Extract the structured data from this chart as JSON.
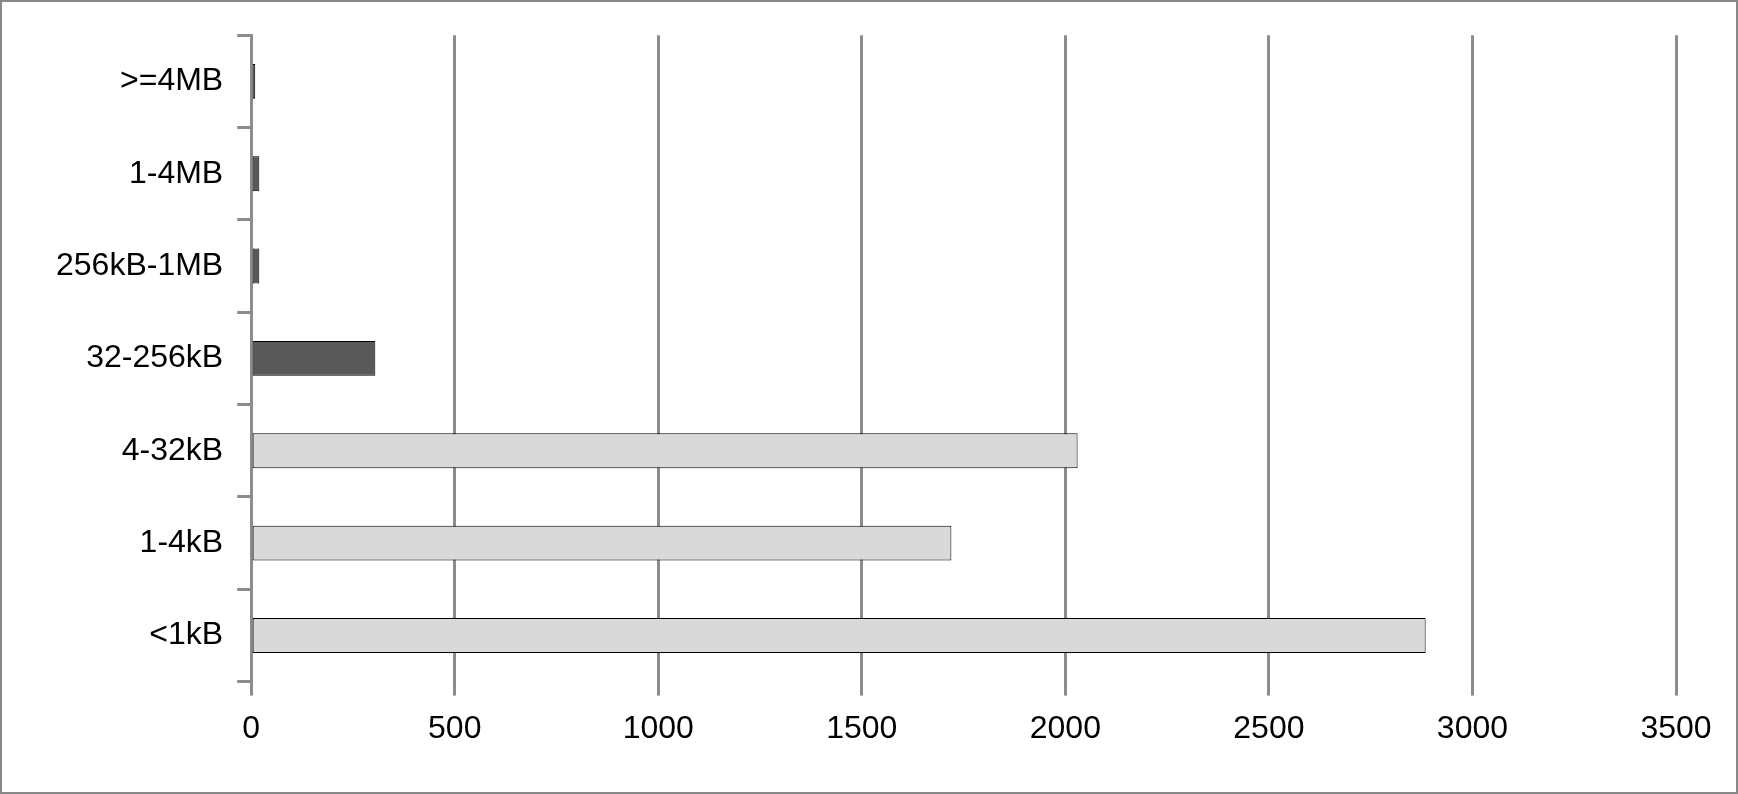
{
  "chart_data": {
    "type": "bar",
    "orientation": "horizontal",
    "categories": [
      ">=4MB",
      "1-4MB",
      "256kB-1MB",
      "32-256kB",
      "4-32kB",
      "1-4kB",
      "<1kB"
    ],
    "values": [
      10,
      20,
      20,
      305,
      2030,
      1720,
      2885
    ],
    "colors": [
      "#595959",
      "#595959",
      "#595959",
      "#595959",
      "#d9d9d9",
      "#d9d9d9",
      "#d9d9d9"
    ],
    "xlim": [
      0,
      3500
    ],
    "xticks": [
      0,
      500,
      1000,
      1500,
      2000,
      2500,
      3000,
      3500
    ],
    "grid": "x",
    "legend": false
  }
}
